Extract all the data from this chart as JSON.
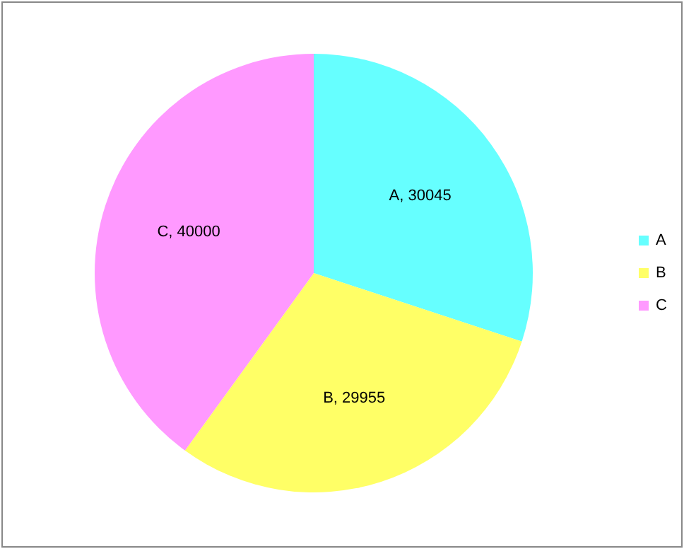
{
  "chart_data": {
    "type": "pie",
    "categories": [
      "A",
      "B",
      "C"
    ],
    "values": [
      30045,
      29955,
      40000
    ],
    "colors": [
      "#66ffff",
      "#ffff66",
      "#ff99ff"
    ],
    "value_labels": [
      "A, 30045",
      "B, 29955",
      "C, 40000"
    ],
    "legend": "right"
  }
}
